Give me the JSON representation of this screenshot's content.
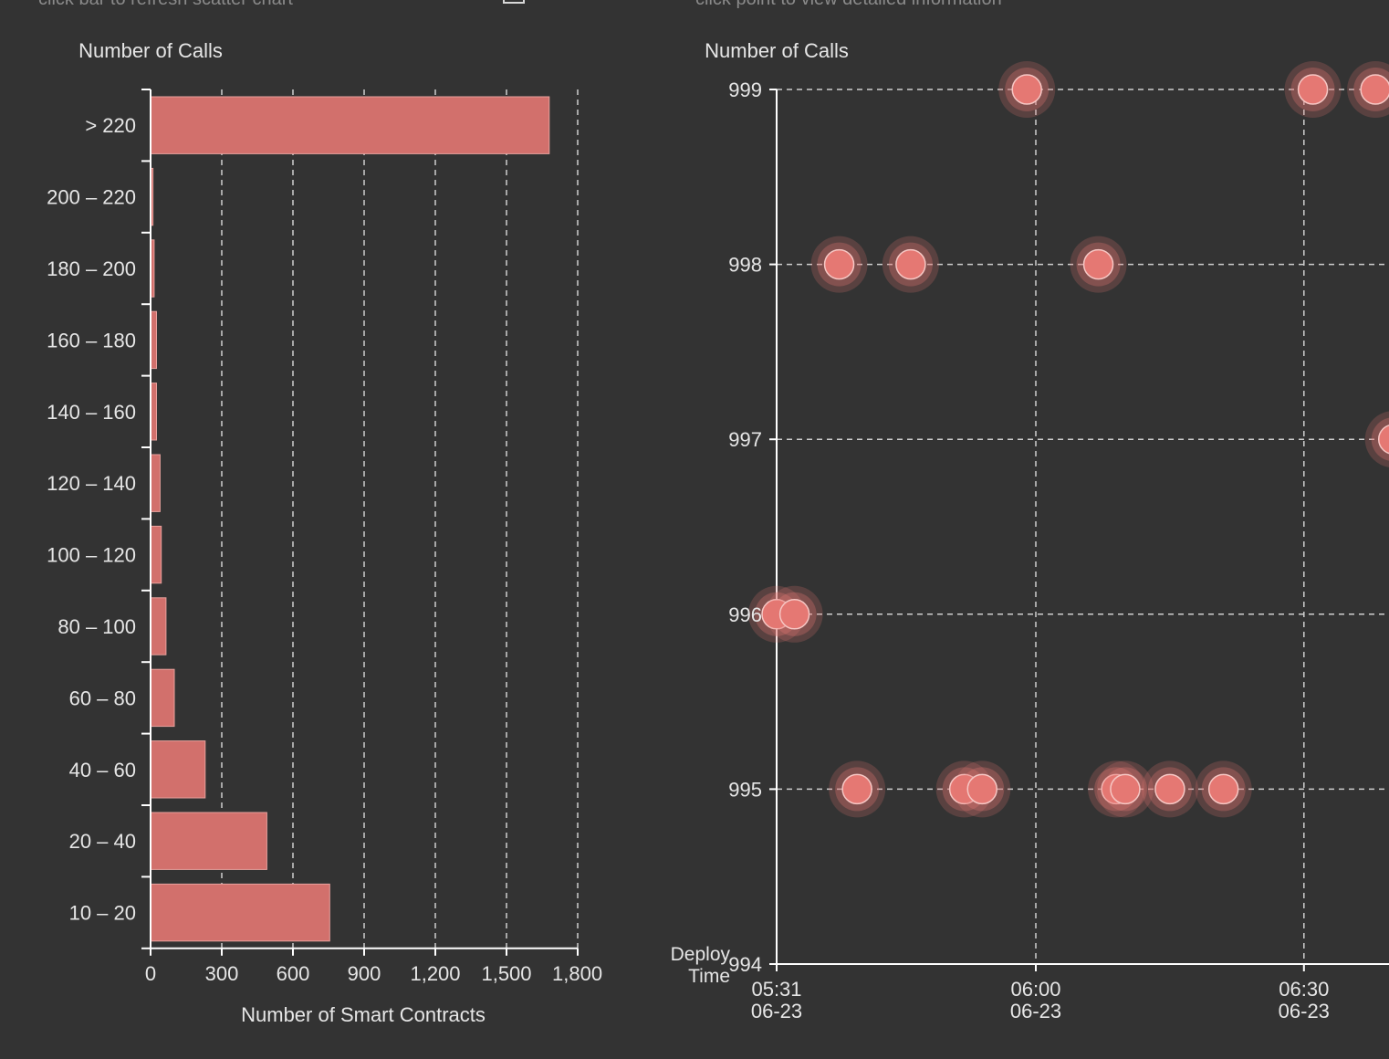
{
  "hints": {
    "left": "click bar to refresh scatter chart",
    "right": "click point to view detailed information"
  },
  "colors": {
    "background": "#333333",
    "bar": "#d2706c",
    "point": "#e57873",
    "axis": "#ffffff",
    "grid": "#cfcfcf",
    "text": "#e6e6e6"
  },
  "chart_data": [
    {
      "type": "bar",
      "orientation": "horizontal",
      "title": "",
      "ylabel": "Number of Calls",
      "xlabel": "Number of Smart Contracts",
      "categories": [
        "> 220",
        "200 – 220",
        "180 – 200",
        "160 – 180",
        "140 – 160",
        "120 – 140",
        "100 – 120",
        "80 – 100",
        "60 – 80",
        "40 – 60",
        "20 – 40",
        "10 – 20"
      ],
      "values": [
        1680,
        10,
        15,
        25,
        25,
        40,
        45,
        65,
        100,
        230,
        490,
        755
      ],
      "xlim": [
        0,
        1800
      ],
      "xticks": [
        "0",
        "300",
        "600",
        "900",
        "1,200",
        "1,500",
        "1,800"
      ],
      "grid": "vertical dashed"
    },
    {
      "type": "scatter",
      "title": "",
      "ylabel": "Number of Calls",
      "xlabel": "Deploy Time",
      "x_ticks": [
        {
          "time": "05:31",
          "date": "06-23"
        },
        {
          "time": "06:00",
          "date": "06-23"
        },
        {
          "time": "06:30",
          "date": "06-23"
        }
      ],
      "y_ticks": [
        "999",
        "998",
        "997",
        "996",
        "995",
        "994"
      ],
      "ylim": [
        994,
        999
      ],
      "grid": "dashed",
      "points": [
        {
          "time": "06-23 05:59",
          "calls": 999
        },
        {
          "time": "06-23 06:31",
          "calls": 999
        },
        {
          "time": "06-23 06:38",
          "calls": 999
        },
        {
          "time": "06-23 05:38",
          "calls": 998
        },
        {
          "time": "06-23 05:46",
          "calls": 998
        },
        {
          "time": "06-23 06:07",
          "calls": 998
        },
        {
          "time": "06-23 06:40",
          "calls": 997
        },
        {
          "time": "06-23 05:31",
          "calls": 996
        },
        {
          "time": "06-23 05:33",
          "calls": 996
        },
        {
          "time": "06-23 05:40",
          "calls": 995
        },
        {
          "time": "06-23 05:52",
          "calls": 995
        },
        {
          "time": "06-23 05:54",
          "calls": 995
        },
        {
          "time": "06-23 06:09",
          "calls": 995
        },
        {
          "time": "06-23 06:10",
          "calls": 995
        },
        {
          "time": "06-23 06:15",
          "calls": 995
        },
        {
          "time": "06-23 06:21",
          "calls": 995
        }
      ]
    }
  ]
}
